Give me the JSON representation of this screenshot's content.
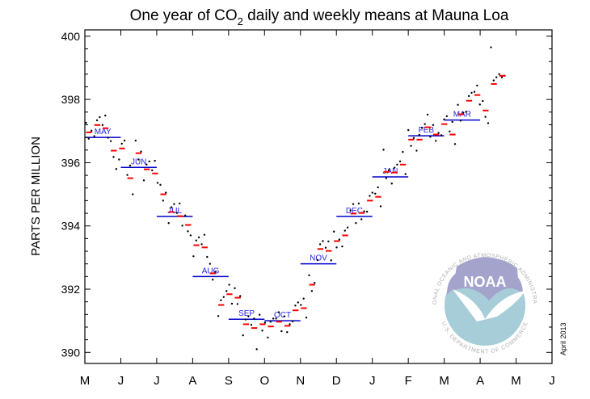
{
  "chart_data": {
    "type": "scatter",
    "title_prefix": "One year of CO",
    "title_sub": "2",
    "title_suffix": " daily and weekly means at Mauna Loa",
    "ylabel": "PARTS PER MILLION",
    "xlabel": "",
    "ylim": [
      389.65,
      400.2
    ],
    "yticks": [
      390,
      392,
      394,
      396,
      398,
      400
    ],
    "xtick_labels": [
      "M",
      "J",
      "J",
      "A",
      "S",
      "O",
      "N",
      "D",
      "J",
      "F",
      "M",
      "A",
      "M",
      "J"
    ],
    "grid": false,
    "colors": {
      "daily": "#000000",
      "weekly": "#ff0000",
      "monthly": "#0000cc",
      "month_label": "#2222ee"
    },
    "monthly_means": [
      {
        "label": "MAY",
        "value": 396.8
      },
      {
        "label": "JUN",
        "value": 395.85
      },
      {
        "label": "JUL",
        "value": 394.3
      },
      {
        "label": "AUG",
        "value": 392.4
      },
      {
        "label": "SEP",
        "value": 391.05
      },
      {
        "label": "OCT",
        "value": 391.0
      },
      {
        "label": "NOV",
        "value": 392.8
      },
      {
        "label": "DEC",
        "value": 394.3
      },
      {
        "label": "JAN",
        "value": 395.55
      },
      {
        "label": "FEB",
        "value": 396.85
      },
      {
        "label": "MAR",
        "value": 397.35
      }
    ],
    "weekly_means": [
      396.96,
      397.19,
      397.09,
      396.38,
      396.45,
      395.51,
      396.3,
      395.79,
      395.66,
      395.0,
      394.44,
      394.31,
      394.03,
      393.39,
      393.32,
      392.5,
      391.5,
      391.84,
      391.73,
      390.89,
      390.77,
      390.89,
      390.82,
      390.97,
      390.84,
      391.33,
      391.4,
      392.14,
      393.27,
      393.21,
      393.52,
      393.7,
      394.39,
      394.41,
      394.8,
      394.92,
      395.71,
      395.69,
      395.94,
      396.73,
      396.73,
      397.12,
      396.89,
      397.22,
      396.89,
      397.53,
      397.96,
      398.14,
      397.65,
      398.49,
      398.75
    ],
    "daily_by_week": [
      [
        397.26,
        396.76,
        397.01
      ],
      [
        396.84,
        397.34,
        397.44
      ],
      [
        397.19,
        397.49,
        396.79
      ],
      [
        396.68,
        396.18,
        395.8
      ],
      [
        396.1,
        396.6,
        396.7
      ],
      [
        395.61,
        395.91,
        395.0
      ],
      [
        396.7,
        396.1,
        396.35
      ],
      [
        395.44,
        395.94,
        396.04
      ],
      [
        395.76,
        396.06,
        395.36
      ],
      [
        395.3,
        394.8,
        395.05
      ],
      [
        394.09,
        394.59,
        394.69
      ],
      [
        394.41,
        394.71,
        394.01
      ],
      [
        394.33,
        393.83,
        393.7
      ],
      [
        393.04,
        393.54,
        393.64
      ],
      [
        393.42,
        393.72,
        393.02
      ],
      [
        392.8,
        392.3,
        392.55
      ],
      [
        391.15,
        391.65,
        391.75
      ],
      [
        391.94,
        392.14,
        391.54
      ],
      [
        392.03,
        391.53,
        391.78
      ],
      [
        390.54,
        391.04,
        391.14
      ],
      [
        390.87,
        391.07,
        390.1
      ],
      [
        391.19,
        390.69,
        390.94
      ],
      [
        390.47,
        390.97,
        391.07
      ],
      [
        391.07,
        391.27,
        390.67
      ],
      [
        391.14,
        390.64,
        390.89
      ],
      [
        390.98,
        391.48,
        391.58
      ],
      [
        391.5,
        391.7,
        391.1
      ],
      [
        392.44,
        391.94,
        392.2
      ],
      [
        392.92,
        393.42,
        393.52
      ],
      [
        393.31,
        393.51,
        392.91
      ],
      [
        393.82,
        393.32,
        393.57
      ],
      [
        393.35,
        393.85,
        393.95
      ],
      [
        394.49,
        394.69,
        394.09
      ],
      [
        394.71,
        394.21,
        394.46
      ],
      [
        394.45,
        394.95,
        395.05
      ],
      [
        395.02,
        395.22,
        394.62
      ],
      [
        396.41,
        395.51,
        395.76
      ],
      [
        395.34,
        395.84,
        395.94
      ],
      [
        396.04,
        396.34,
        395.64
      ],
      [
        397.03,
        396.53,
        396.78
      ],
      [
        396.38,
        396.88,
        397.1
      ],
      [
        397.22,
        397.52,
        396.82
      ],
      [
        397.19,
        396.69,
        396.94
      ],
      [
        396.87,
        397.37,
        397.47
      ],
      [
        396.99,
        397.29,
        396.59
      ],
      [
        397.83,
        397.33,
        397.58
      ],
      [
        397.61,
        398.11,
        398.21
      ],
      [
        398.24,
        398.44,
        397.84
      ],
      [
        397.95,
        397.45,
        397.25
      ],
      [
        399.65,
        398.6,
        398.7
      ],
      [
        398.8,
        398.7,
        398.75
      ]
    ]
  },
  "logo": {
    "text": "NOAA",
    "ring_text_top": "NATIONAL OCEANIC AND ATMOSPHERIC ADMINISTRATION",
    "ring_text_bottom": "U.S. DEPARTMENT OF COMMERCE"
  },
  "date_stamp": "April 2013"
}
